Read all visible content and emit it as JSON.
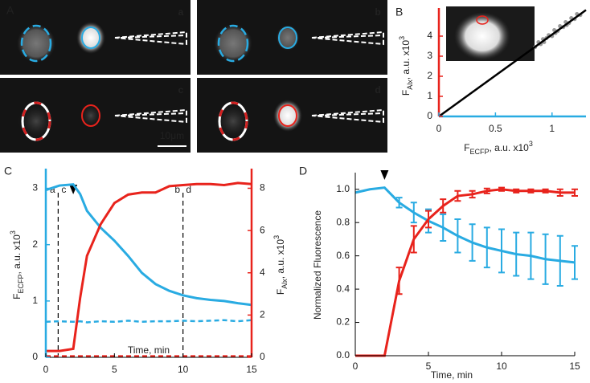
{
  "images": {
    "label": "A",
    "frames": [
      "a",
      "b",
      "c",
      "d"
    ],
    "scale_bar": "10μm"
  },
  "chart_data": [
    {
      "type": "scatter",
      "label": "B",
      "xlabel": [
        "F",
        "ECFP",
        ", a.u. x10",
        "3"
      ],
      "ylabel": [
        "F",
        "Alx",
        ", a.u. x10",
        "3"
      ],
      "x": [
        0.85,
        0.88,
        0.9,
        0.92,
        0.95,
        0.97,
        1.0,
        1.02,
        1.05,
        1.07,
        1.1,
        1.12,
        1.15,
        1.17,
        1.2,
        1.22,
        1.25,
        0.93,
        1.03,
        1.13
      ],
      "values": [
        3.45,
        3.7,
        3.6,
        3.85,
        3.9,
        4.05,
        4.0,
        4.3,
        4.25,
        4.5,
        4.45,
        4.7,
        4.65,
        4.9,
        4.85,
        5.1,
        5.05,
        3.7,
        4.15,
        4.55
      ],
      "color": "#9a9a9a",
      "fit": {
        "x": [
          0,
          1.3
        ],
        "values": [
          0,
          5.3
        ],
        "color": "#000000"
      },
      "xlim": [
        0,
        1.3
      ],
      "xticks": [
        0,
        0.5,
        1
      ],
      "ylim": [
        0,
        5.4
      ],
      "yticks": [
        0,
        1,
        2,
        3,
        4
      ],
      "xaxis_color": "#29abe2",
      "yaxis_color": "#e8231c"
    },
    {
      "type": "line",
      "label": "C",
      "xlabel": [
        "Time, min"
      ],
      "ylabel": [
        "F",
        "ECFP",
        ", a.u. x10",
        "3"
      ],
      "y2label": [
        "F",
        "Alx",
        ", a.u. x10",
        "3"
      ],
      "x": [
        0,
        1,
        2,
        2.5,
        3,
        4,
        5,
        6,
        7,
        8,
        9,
        10,
        11,
        12,
        13,
        14,
        15
      ],
      "series": [
        {
          "color": "#29abe2",
          "dash": false,
          "values": [
            2.97,
            3.05,
            3.07,
            2.9,
            2.6,
            2.3,
            2.07,
            1.8,
            1.5,
            1.3,
            1.18,
            1.1,
            1.05,
            1.02,
            1.0,
            0.96,
            0.93
          ]
        },
        {
          "color": "#29abe2",
          "dash": true,
          "values": [
            0.63,
            0.64,
            0.63,
            0.64,
            0.62,
            0.64,
            0.63,
            0.65,
            0.63,
            0.64,
            0.64,
            0.65,
            0.64,
            0.65,
            0.66,
            0.64,
            0.66
          ]
        },
        {
          "color": "#e8231c",
          "dash": false,
          "axis": "y2",
          "values": [
            0.3,
            0.3,
            0.4,
            2.8,
            4.8,
            6.3,
            7.3,
            7.7,
            7.8,
            7.8,
            8.1,
            8.15,
            8.2,
            8.2,
            8.15,
            8.25,
            8.2
          ]
        },
        {
          "color": "#e8231c",
          "dash": true,
          "axis": "y2",
          "values": [
            0.05,
            0.05,
            0.05,
            0.05,
            0.05,
            0.05,
            0.05,
            0.05,
            0.05,
            0.05,
            0.05,
            0.05,
            0.05,
            0.05,
            0.05,
            0.05,
            0.05
          ]
        }
      ],
      "xlim": [
        0,
        15
      ],
      "xticks": [
        0,
        5,
        10,
        15
      ],
      "ylim": [
        0,
        3.35
      ],
      "yticks": [
        0,
        1,
        2,
        3
      ],
      "y2lim": [
        0,
        8.93
      ],
      "y2ticks": [
        0,
        2,
        4,
        6,
        8
      ],
      "yaxis_color": "#29abe2",
      "y2axis_color": "#e8231c",
      "vlines": [
        {
          "x": 0.9,
          "labels": [
            "a",
            "c"
          ]
        },
        {
          "x": 10,
          "labels": [
            "b",
            "d"
          ]
        }
      ],
      "arrow_x": 2
    },
    {
      "type": "errorline",
      "label": "D",
      "xlabel": [
        "Time, min"
      ],
      "ylabel": [
        "Normalized Fluorescence"
      ],
      "x": [
        0,
        1,
        2,
        3,
        4,
        5,
        6,
        7,
        8,
        9,
        10,
        11,
        12,
        13,
        14,
        15
      ],
      "series": [
        {
          "color": "#29abe2",
          "values": [
            0.98,
            1.0,
            1.01,
            0.92,
            0.86,
            0.81,
            0.77,
            0.72,
            0.68,
            0.65,
            0.63,
            0.61,
            0.6,
            0.58,
            0.57,
            0.56
          ],
          "errors": [
            null,
            null,
            null,
            0.03,
            0.06,
            0.07,
            0.08,
            0.1,
            0.11,
            0.12,
            0.13,
            0.13,
            0.14,
            0.15,
            0.15,
            0.1
          ]
        },
        {
          "color": "#e8231c",
          "values": [
            0,
            0,
            0,
            0.45,
            0.7,
            0.82,
            0.9,
            0.96,
            0.97,
            0.99,
            1.0,
            0.99,
            0.99,
            0.99,
            0.98,
            0.98
          ],
          "errors": [
            null,
            null,
            null,
            0.08,
            0.08,
            0.05,
            0.04,
            0.03,
            0.02,
            0.015,
            0.01,
            0.01,
            0.01,
            0.01,
            0.02,
            0.02
          ]
        }
      ],
      "xlim": [
        0,
        15
      ],
      "xticks": [
        0,
        5,
        10,
        15
      ],
      "ylim": [
        0,
        1.1
      ],
      "yticks": [
        {
          "value": 0,
          "label": "0.0"
        },
        0.2,
        0.4,
        0.6,
        0.8,
        {
          "value": 1,
          "label": "1.0"
        }
      ],
      "arrow_x": 2
    }
  ]
}
